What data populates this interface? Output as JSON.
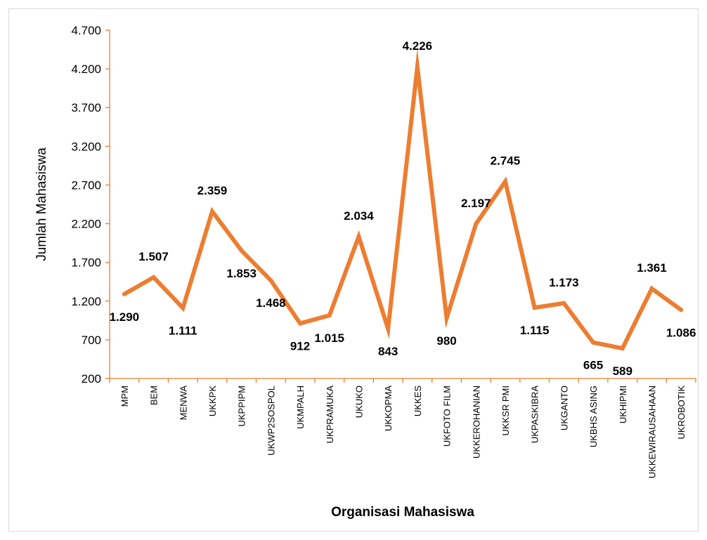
{
  "chart_data": {
    "type": "line",
    "title": "",
    "xlabel": "Organisasi Mahasiswa",
    "ylabel": "Jumlah Mahasiswa",
    "categories": [
      "MPM",
      "BEM",
      "MENWA",
      "UKKPK",
      "UKPPIPM",
      "UKWP2SOSPOL",
      "UKMPALH",
      "UKPRAMUKA",
      "UKUKO",
      "UKKOPMA",
      "UKKES",
      "UKFOTO FILM",
      "UKKEROHANIAN",
      "UKKSR PMI",
      "UKPASKIBRA",
      "UKGANTO",
      "UKBHS ASING",
      "UKHIPMI",
      "UKKEWIRAUSAHAAN",
      "UKROBOTIK"
    ],
    "values": [
      1290,
      1507,
      1111,
      2359,
      1853,
      1468,
      912,
      1015,
      2034,
      843,
      4226,
      980,
      2197,
      2745,
      1115,
      1173,
      665,
      589,
      1361,
      1086
    ],
    "value_labels": [
      "1.290",
      "1.507",
      "1.111",
      "2.359",
      "1.853",
      "1.468",
      "912",
      "1.015",
      "2.034",
      "843",
      "4.226",
      "980",
      "2.197",
      "2.745",
      "1.115",
      "1.173",
      "665",
      "589",
      "1.361",
      "1.086"
    ],
    "yticks": [
      200,
      700,
      1200,
      1700,
      2200,
      2700,
      3200,
      3700,
      4200,
      4700
    ],
    "ytick_labels": [
      "200",
      "700",
      "1.200",
      "1.700",
      "2.200",
      "2.700",
      "3.200",
      "3.700",
      "4.200",
      "4.700"
    ],
    "ylim": [
      200,
      4700
    ],
    "grid": false,
    "legend": "none",
    "colors": {
      "line": "#ED7D31",
      "axis": "#ED7D31",
      "frame": "#D9D9D9",
      "text": "#000000"
    }
  }
}
